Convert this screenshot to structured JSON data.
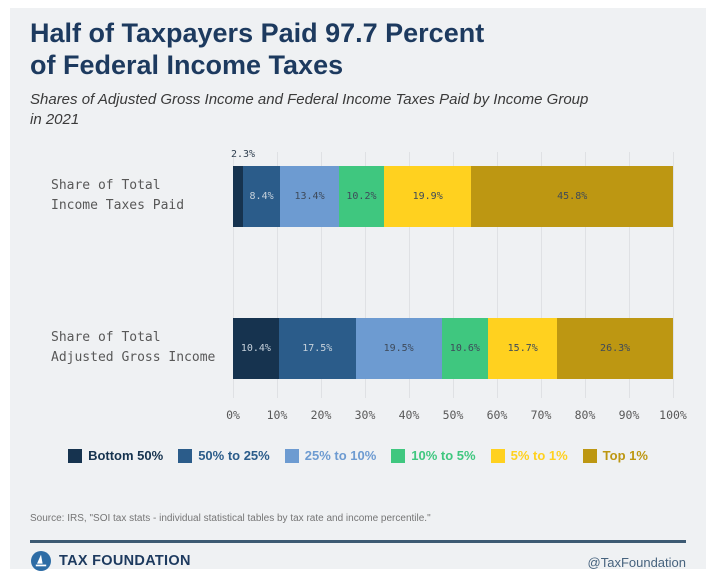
{
  "header": {
    "title_line1": "Half of Taxpayers Paid 97.7 Percent",
    "title_line2": "of Federal Income Taxes",
    "subtitle_line1": "Shares of Adjusted Gross Income and Federal Income Taxes Paid by Income Group",
    "subtitle_line2": "in 2021"
  },
  "chart_data": {
    "type": "bar",
    "orientation": "horizontal-stacked",
    "categories": [
      [
        "Share of Total",
        "Income Taxes Paid"
      ],
      [
        "Share of Total",
        "Adjusted Gross Income"
      ]
    ],
    "series": [
      {
        "name": "Bottom 50%",
        "color": "#16334f",
        "label_color": "#c7d2dc",
        "values": [
          2.3,
          10.4
        ]
      },
      {
        "name": "50% to 25%",
        "color": "#2b5c8a",
        "label_color": "#c7d2dc",
        "values": [
          8.4,
          17.5
        ]
      },
      {
        "name": "25% to 10%",
        "color": "#6d9bd1",
        "label_color": "#3e4a5a",
        "values": [
          13.4,
          19.5
        ]
      },
      {
        "name": "10% to 5%",
        "color": "#3fc77f",
        "label_color": "#3e4a5a",
        "values": [
          10.2,
          10.6
        ]
      },
      {
        "name": "5% to 1%",
        "color": "#ffd11f",
        "label_color": "#3e4a5a",
        "values": [
          19.9,
          15.7
        ]
      },
      {
        "name": "Top 1%",
        "color": "#bd9712",
        "label_color": "#3e4a5a",
        "values": [
          45.8,
          26.3
        ]
      }
    ],
    "x_ticks": [
      "0%",
      "10%",
      "20%",
      "30%",
      "40%",
      "50%",
      "60%",
      "70%",
      "80%",
      "90%",
      "100%"
    ],
    "xlim": [
      0,
      100
    ],
    "grid": true,
    "legend_position": "bottom",
    "value_suffix": "%"
  },
  "source": "Source: IRS, \"SOI tax stats - individual statistical tables by tax rate and income percentile.\"",
  "footer": {
    "brand": "TAX FOUNDATION",
    "handle": "@TaxFoundation"
  },
  "colors": {
    "card_background": "#eff1f3",
    "title": "#1d3a5f",
    "gridline": "#dfe1e4",
    "footer_rule": "#3d5a73",
    "logo_blue": "#2d6ca5"
  }
}
